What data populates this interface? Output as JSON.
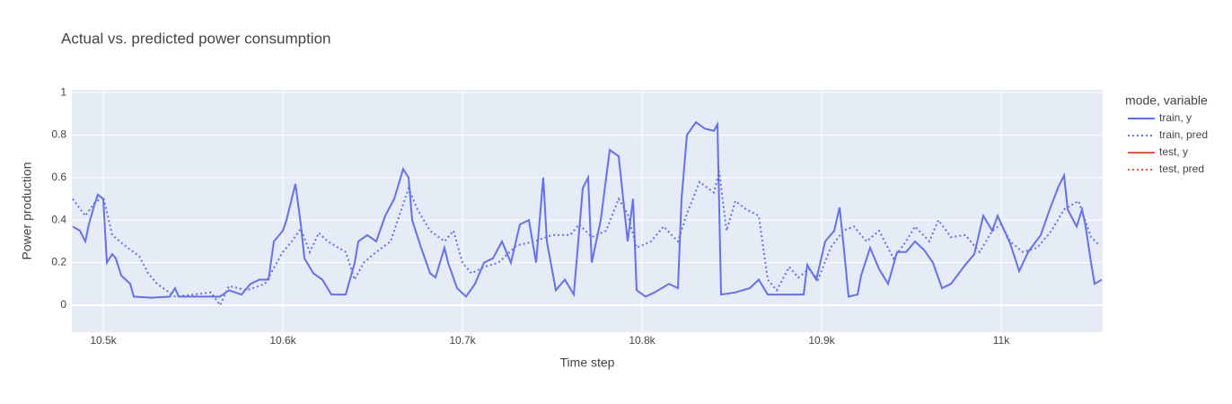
{
  "chart_data": {
    "type": "line",
    "title": "Actual vs. predicted power consumption",
    "x_label": "Time step",
    "y_label": "Power production",
    "legend_title": "mode, variable",
    "legend": "right",
    "grid": true,
    "xlim": [
      10482.5,
      11056.5
    ],
    "ylim": [
      -0.127,
      1.013
    ],
    "xticks": [
      {
        "value": 10500,
        "label": "10.5k"
      },
      {
        "value": 10600,
        "label": "10.6k"
      },
      {
        "value": 10700,
        "label": "10.7k"
      },
      {
        "value": 10800,
        "label": "10.8k"
      },
      {
        "value": 10900,
        "label": "10.9k"
      },
      {
        "value": 11000,
        "label": "11k"
      }
    ],
    "yticks": [
      0,
      0.2,
      0.4,
      0.6,
      0.8,
      1
    ],
    "series": [
      {
        "name": "train, y",
        "color": "#636efa",
        "dash": "solid",
        "x": [
          10483,
          10487,
          10490,
          10492,
          10495,
          10497,
          10500,
          10502,
          10505,
          10507,
          10510,
          10515,
          10517,
          10527,
          10537,
          10540,
          10542,
          10557,
          10565,
          10570,
          10577,
          10582,
          10587,
          10592,
          10595,
          10600,
          10602,
          10607,
          10610,
          10612,
          10617,
          10622,
          10627,
          10635,
          10640,
          10642,
          10647,
          10652,
          10657,
          10662,
          10667,
          10670,
          10672,
          10677,
          10682,
          10685,
          10690,
          10692,
          10697,
          10702,
          10707,
          10712,
          10717,
          10722,
          10727,
          10732,
          10737,
          10741,
          10745,
          10747,
          10752,
          10757,
          10762,
          10767,
          10770,
          10772,
          10777,
          10782,
          10787,
          10792,
          10795,
          10797,
          10802,
          10807,
          10815,
          10820,
          10822,
          10825,
          10830,
          10835,
          10840,
          10842,
          10844,
          10852,
          10860,
          10865,
          10870,
          10877,
          10890,
          10892,
          10897,
          10902,
          10907,
          10910,
          10912,
          10915,
          10920,
          10922,
          10927,
          10932,
          10937,
          10942,
          10947,
          10952,
          10957,
          10962,
          10967,
          10972,
          10980,
          10985,
          10990,
          10995,
          10998,
          11005,
          11010,
          11015,
          11022,
          11027,
          11032,
          11035,
          11037,
          11042,
          11045,
          11047,
          11050,
          11052,
          11056
        ],
        "values": [
          0.37,
          0.35,
          0.3,
          0.38,
          0.47,
          0.52,
          0.5,
          0.2,
          0.24,
          0.22,
          0.14,
          0.1,
          0.04,
          0.035,
          0.04,
          0.08,
          0.04,
          0.04,
          0.04,
          0.07,
          0.05,
          0.1,
          0.12,
          0.12,
          0.3,
          0.35,
          0.4,
          0.57,
          0.38,
          0.22,
          0.15,
          0.12,
          0.05,
          0.05,
          0.2,
          0.3,
          0.33,
          0.3,
          0.42,
          0.5,
          0.64,
          0.6,
          0.4,
          0.27,
          0.15,
          0.13,
          0.27,
          0.2,
          0.08,
          0.04,
          0.1,
          0.2,
          0.22,
          0.3,
          0.2,
          0.38,
          0.4,
          0.2,
          0.6,
          0.3,
          0.07,
          0.12,
          0.05,
          0.55,
          0.6,
          0.2,
          0.4,
          0.73,
          0.7,
          0.3,
          0.5,
          0.07,
          0.04,
          0.06,
          0.1,
          0.08,
          0.5,
          0.8,
          0.86,
          0.83,
          0.82,
          0.85,
          0.05,
          0.06,
          0.08,
          0.12,
          0.05,
          0.05,
          0.05,
          0.19,
          0.12,
          0.3,
          0.35,
          0.46,
          0.3,
          0.04,
          0.05,
          0.14,
          0.27,
          0.17,
          0.1,
          0.25,
          0.25,
          0.3,
          0.26,
          0.2,
          0.08,
          0.1,
          0.19,
          0.24,
          0.42,
          0.35,
          0.42,
          0.29,
          0.16,
          0.25,
          0.33,
          0.45,
          0.56,
          0.61,
          0.45,
          0.37,
          0.45,
          0.37,
          0.2,
          0.1,
          0.12
        ]
      },
      {
        "name": "train, pred",
        "color": "#636efa",
        "dash": "dot",
        "x": [
          10483,
          10490,
          10495,
          10500,
          10505,
          10512,
          10520,
          10525,
          10530,
          10540,
          10550,
          10560,
          10565,
          10570,
          10580,
          10590,
          10600,
          10605,
          10610,
          10615,
          10620,
          10625,
          10635,
          10640,
          10645,
          10652,
          10660,
          10670,
          10675,
          10682,
          10690,
          10695,
          10700,
          10705,
          10712,
          10720,
          10730,
          10740,
          10750,
          10760,
          10765,
          10772,
          10780,
          10787,
          10792,
          10797,
          10805,
          10812,
          10820,
          10825,
          10832,
          10840,
          10843,
          10847,
          10852,
          10858,
          10865,
          10870,
          10875,
          10882,
          10887,
          10893,
          10898,
          10905,
          10912,
          10918,
          10925,
          10932,
          10940,
          10947,
          10952,
          10960,
          10965,
          10972,
          10980,
          10988,
          10995,
          11000,
          11005,
          11012,
          11020,
          11028,
          11035,
          11043,
          11050,
          11055
        ],
        "values": [
          0.5,
          0.42,
          0.48,
          0.51,
          0.33,
          0.28,
          0.23,
          0.15,
          0.1,
          0.04,
          0.05,
          0.06,
          0.0,
          0.09,
          0.07,
          0.1,
          0.25,
          0.3,
          0.36,
          0.25,
          0.34,
          0.3,
          0.25,
          0.12,
          0.2,
          0.25,
          0.3,
          0.55,
          0.45,
          0.35,
          0.3,
          0.35,
          0.2,
          0.15,
          0.18,
          0.2,
          0.28,
          0.3,
          0.33,
          0.33,
          0.38,
          0.32,
          0.35,
          0.5,
          0.43,
          0.27,
          0.3,
          0.37,
          0.3,
          0.43,
          0.58,
          0.53,
          0.63,
          0.35,
          0.49,
          0.45,
          0.42,
          0.12,
          0.07,
          0.18,
          0.13,
          0.17,
          0.12,
          0.27,
          0.35,
          0.37,
          0.3,
          0.35,
          0.22,
          0.3,
          0.37,
          0.3,
          0.4,
          0.32,
          0.33,
          0.25,
          0.35,
          0.38,
          0.3,
          0.25,
          0.27,
          0.35,
          0.45,
          0.49,
          0.32,
          0.28
        ]
      },
      {
        "name": "test, y",
        "color": "#EF553B",
        "dash": "solid",
        "x": [],
        "values": []
      },
      {
        "name": "test, pred",
        "color": "#EF553B",
        "dash": "dot",
        "x": [],
        "values": []
      }
    ]
  }
}
